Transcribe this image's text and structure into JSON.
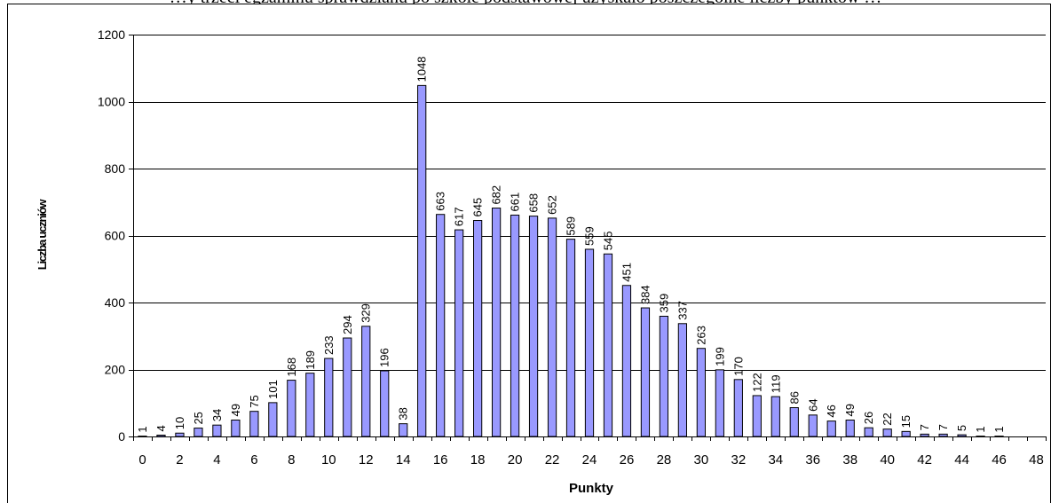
{
  "caption_fragment": "…y trzeci egzaminu sprawdzianu po szkole podstawowej uzyskało poszczególne liczby punktów …",
  "chart_data": {
    "type": "bar",
    "xlabel": "Punkty",
    "ylabel": "Liczba uczniów",
    "ylim": [
      0,
      1200
    ],
    "yticks": [
      0,
      200,
      400,
      600,
      800,
      1000,
      1200
    ],
    "xticks": [
      0,
      2,
      4,
      6,
      8,
      10,
      12,
      14,
      16,
      18,
      20,
      22,
      24,
      26,
      28,
      30,
      32,
      34,
      36,
      38,
      40,
      42,
      44,
      46,
      48
    ],
    "categories": [
      0,
      1,
      2,
      3,
      4,
      5,
      6,
      7,
      8,
      9,
      10,
      11,
      12,
      13,
      14,
      15,
      16,
      17,
      18,
      19,
      20,
      21,
      22,
      23,
      24,
      25,
      26,
      27,
      28,
      29,
      30,
      31,
      32,
      33,
      34,
      35,
      36,
      37,
      38,
      39,
      40,
      41,
      42,
      43,
      44,
      45,
      46,
      47,
      48
    ],
    "values": [
      1,
      4,
      10,
      25,
      34,
      49,
      75,
      101,
      168,
      189,
      233,
      294,
      329,
      196,
      38,
      1048,
      663,
      617,
      645,
      682,
      661,
      658,
      652,
      589,
      559,
      545,
      451,
      384,
      359,
      337,
      263,
      199,
      170,
      122,
      119,
      86,
      64,
      46,
      49,
      26,
      22,
      15,
      7,
      7,
      5,
      1,
      1,
      0,
      0
    ],
    "data_labels": [
      "1",
      "4",
      "10",
      "25",
      "34",
      "49",
      "75",
      "101",
      "168",
      "189",
      "233",
      "294",
      "329",
      "196",
      "38",
      "1048",
      "663",
      "617",
      "645",
      "682",
      "661",
      "658",
      "652",
      "589",
      "559",
      "545",
      "451",
      "384",
      "359",
      "337",
      "263",
      "199",
      "170",
      "122",
      "119",
      "86",
      "64",
      "46",
      "49",
      "26",
      "22",
      "15",
      "7",
      "7",
      "5",
      "1",
      "1",
      "",
      ""
    ],
    "grid": true,
    "legend": "none",
    "bar_color": "#9999ff",
    "bar_stroke": "#000000"
  }
}
